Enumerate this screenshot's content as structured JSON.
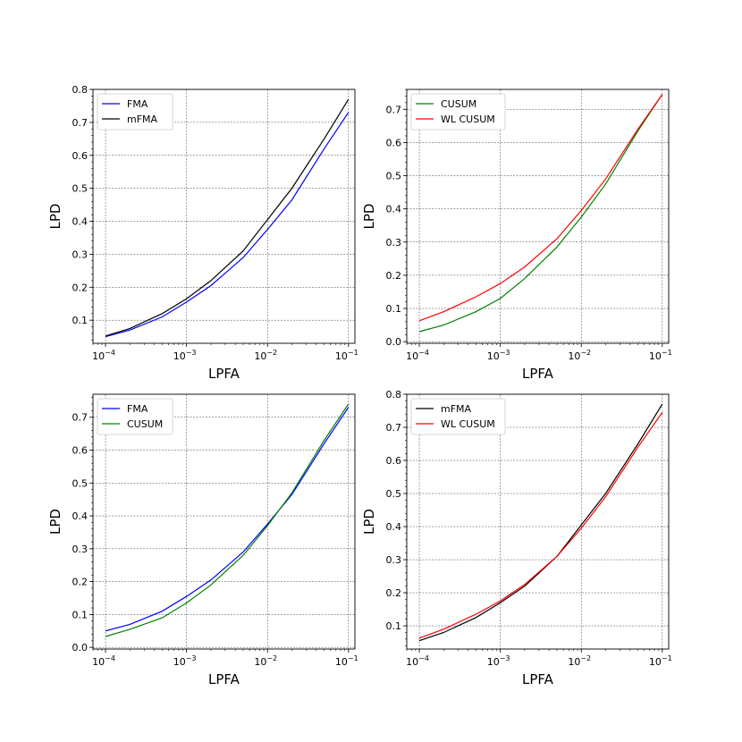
{
  "chart_data": [
    {
      "type": "line",
      "xscale": "log",
      "xlabel": "LPFA",
      "ylabel": "LPD",
      "xlim": [
        7e-05,
        0.12
      ],
      "ylim": [
        0.03,
        0.8
      ],
      "xticks": [
        {
          "value": 0.0001,
          "mant": "10",
          "exp": "−4"
        },
        {
          "value": 0.001,
          "mant": "10",
          "exp": "−3"
        },
        {
          "value": 0.01,
          "mant": "10",
          "exp": "−2"
        },
        {
          "value": 0.1,
          "mant": "10",
          "exp": "−1"
        }
      ],
      "yticks": [
        0.1,
        0.2,
        0.3,
        0.4,
        0.5,
        0.6,
        0.7,
        0.8
      ],
      "ytick_labels": [
        "0.1",
        "0.2",
        "0.3",
        "0.4",
        "0.5",
        "0.6",
        "0.7",
        "0.8"
      ],
      "grid": true,
      "legend_position": "top-left",
      "series": [
        {
          "name": "FMA",
          "color": "#0000ff",
          "x": [
            0.0001,
            0.0002,
            0.0005,
            0.001,
            0.002,
            0.005,
            0.01,
            0.02,
            0.05,
            0.1
          ],
          "y": [
            0.05,
            0.07,
            0.11,
            0.155,
            0.205,
            0.29,
            0.375,
            0.465,
            0.62,
            0.73
          ]
        },
        {
          "name": "mFMA",
          "color": "#000000",
          "x": [
            0.0001,
            0.0002,
            0.0005,
            0.001,
            0.002,
            0.005,
            0.01,
            0.02,
            0.05,
            0.1
          ],
          "y": [
            0.052,
            0.075,
            0.12,
            0.165,
            0.22,
            0.31,
            0.405,
            0.5,
            0.65,
            0.77
          ]
        }
      ]
    },
    {
      "type": "line",
      "xscale": "log",
      "xlabel": "LPFA",
      "ylabel": "LPD",
      "xlim": [
        7e-05,
        0.12
      ],
      "ylim": [
        -0.005,
        0.76
      ],
      "xticks": [
        {
          "value": 0.0001,
          "mant": "10",
          "exp": "−4"
        },
        {
          "value": 0.001,
          "mant": "10",
          "exp": "−3"
        },
        {
          "value": 0.01,
          "mant": "10",
          "exp": "−2"
        },
        {
          "value": 0.1,
          "mant": "10",
          "exp": "−1"
        }
      ],
      "yticks": [
        0.0,
        0.1,
        0.2,
        0.3,
        0.4,
        0.5,
        0.6,
        0.7
      ],
      "ytick_labels": [
        "0.0",
        "0.1",
        "0.2",
        "0.3",
        "0.4",
        "0.5",
        "0.6",
        "0.7"
      ],
      "grid": true,
      "legend_position": "top-left",
      "series": [
        {
          "name": "CUSUM",
          "color": "#008000",
          "x": [
            0.0001,
            0.0002,
            0.0005,
            0.001,
            0.002,
            0.005,
            0.01,
            0.02,
            0.05,
            0.1
          ],
          "y": [
            0.03,
            0.05,
            0.09,
            0.13,
            0.19,
            0.285,
            0.375,
            0.475,
            0.635,
            0.745
          ]
        },
        {
          "name": "WL CUSUM",
          "color": "#ff0000",
          "x": [
            0.0001,
            0.0002,
            0.0005,
            0.001,
            0.002,
            0.005,
            0.01,
            0.02,
            0.05,
            0.1
          ],
          "y": [
            0.063,
            0.09,
            0.135,
            0.175,
            0.225,
            0.31,
            0.395,
            0.49,
            0.64,
            0.745
          ]
        }
      ]
    },
    {
      "type": "line",
      "xscale": "log",
      "xlabel": "LPFA",
      "ylabel": "LPD",
      "xlim": [
        7e-05,
        0.12
      ],
      "ylim": [
        -0.005,
        0.77
      ],
      "xticks": [
        {
          "value": 0.0001,
          "mant": "10",
          "exp": "−4"
        },
        {
          "value": 0.001,
          "mant": "10",
          "exp": "−3"
        },
        {
          "value": 0.01,
          "mant": "10",
          "exp": "−2"
        },
        {
          "value": 0.1,
          "mant": "10",
          "exp": "−1"
        }
      ],
      "yticks": [
        0.0,
        0.1,
        0.2,
        0.3,
        0.4,
        0.5,
        0.6,
        0.7
      ],
      "ytick_labels": [
        "0.0",
        "0.1",
        "0.2",
        "0.3",
        "0.4",
        "0.5",
        "0.6",
        "0.7"
      ],
      "grid": true,
      "legend_position": "top-left",
      "series": [
        {
          "name": "FMA",
          "color": "#0000ff",
          "x": [
            0.0001,
            0.0002,
            0.0005,
            0.001,
            0.002,
            0.005,
            0.01,
            0.02,
            0.05,
            0.1
          ],
          "y": [
            0.05,
            0.07,
            0.11,
            0.155,
            0.205,
            0.29,
            0.375,
            0.465,
            0.62,
            0.73
          ]
        },
        {
          "name": "CUSUM",
          "color": "#008000",
          "x": [
            0.0001,
            0.0002,
            0.0005,
            0.001,
            0.002,
            0.005,
            0.01,
            0.02,
            0.05,
            0.1
          ],
          "y": [
            0.033,
            0.055,
            0.09,
            0.135,
            0.19,
            0.28,
            0.37,
            0.47,
            0.63,
            0.74
          ]
        }
      ]
    },
    {
      "type": "line",
      "xscale": "log",
      "xlabel": "LPFA",
      "ylabel": "LPD",
      "xlim": [
        7e-05,
        0.12
      ],
      "ylim": [
        0.03,
        0.8
      ],
      "xticks": [
        {
          "value": 0.0001,
          "mant": "10",
          "exp": "−4"
        },
        {
          "value": 0.001,
          "mant": "10",
          "exp": "−3"
        },
        {
          "value": 0.01,
          "mant": "10",
          "exp": "−2"
        },
        {
          "value": 0.1,
          "mant": "10",
          "exp": "−1"
        }
      ],
      "yticks": [
        0.1,
        0.2,
        0.3,
        0.4,
        0.5,
        0.6,
        0.7,
        0.8
      ],
      "ytick_labels": [
        "0.1",
        "0.2",
        "0.3",
        "0.4",
        "0.5",
        "0.6",
        "0.7",
        "0.8"
      ],
      "grid": true,
      "legend_position": "top-left",
      "series": [
        {
          "name": "mFMA",
          "color": "#000000",
          "x": [
            0.0001,
            0.0002,
            0.0005,
            0.001,
            0.002,
            0.005,
            0.01,
            0.02,
            0.05,
            0.1
          ],
          "y": [
            0.055,
            0.08,
            0.125,
            0.17,
            0.22,
            0.31,
            0.405,
            0.5,
            0.65,
            0.77
          ]
        },
        {
          "name": "WL CUSUM",
          "color": "#ff0000",
          "x": [
            0.0001,
            0.0002,
            0.0005,
            0.001,
            0.002,
            0.005,
            0.01,
            0.02,
            0.05,
            0.1
          ],
          "y": [
            0.063,
            0.09,
            0.135,
            0.175,
            0.225,
            0.31,
            0.395,
            0.49,
            0.64,
            0.745
          ]
        }
      ]
    }
  ]
}
